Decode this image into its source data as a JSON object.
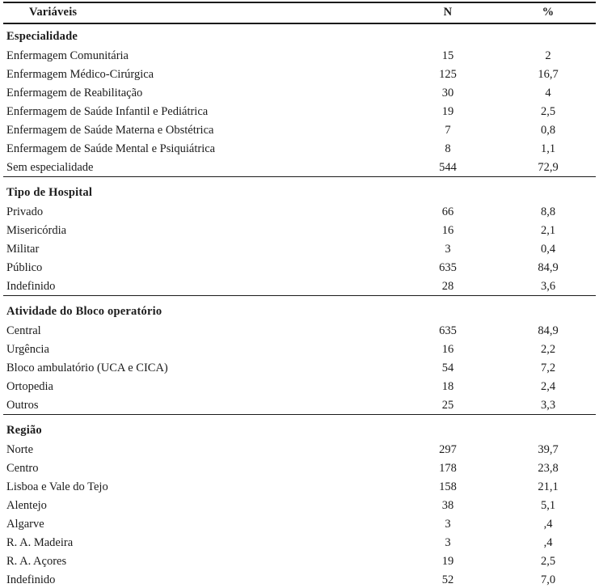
{
  "table": {
    "columns": [
      "Variáveis",
      "N",
      "%"
    ],
    "sections": [
      {
        "header": "Especialidade",
        "rows": [
          {
            "label": "Enfermagem Comunitária",
            "n": "15",
            "pct": "2"
          },
          {
            "label": "Enfermagem Médico-Cirúrgica",
            "n": "125",
            "pct": "16,7"
          },
          {
            "label": "Enfermagem de Reabilitação",
            "n": "30",
            "pct": "4"
          },
          {
            "label": "Enfermagem de Saúde Infantil e Pediátrica",
            "n": "19",
            "pct": "2,5"
          },
          {
            "label": "Enfermagem de Saúde Materna e Obstétrica",
            "n": "7",
            "pct": "0,8"
          },
          {
            "label": "Enfermagem de Saúde Mental e Psiquiátrica",
            "n": "8",
            "pct": "1,1"
          },
          {
            "label": "Sem especialidade",
            "n": "544",
            "pct": "72,9"
          }
        ]
      },
      {
        "header": "Tipo de Hospital",
        "rows": [
          {
            "label": "Privado",
            "n": "66",
            "pct": "8,8"
          },
          {
            "label": "Misericórdia",
            "n": "16",
            "pct": "2,1"
          },
          {
            "label": "Militar",
            "n": "3",
            "pct": "0,4"
          },
          {
            "label": "Público",
            "n": "635",
            "pct": "84,9"
          },
          {
            "label": "Indefinido",
            "n": "28",
            "pct": "3,6"
          }
        ]
      },
      {
        "header": "Atividade do Bloco operatório",
        "rows": [
          {
            "label": "Central",
            "n": "635",
            "pct": "84,9"
          },
          {
            "label": "Urgência",
            "n": "16",
            "pct": "2,2"
          },
          {
            "label": "Bloco ambulatório (UCA e CICA)",
            "n": "54",
            "pct": "7,2"
          },
          {
            "label": "Ortopedia",
            "n": "18",
            "pct": "2,4"
          },
          {
            "label": "Outros",
            "n": "25",
            "pct": "3,3"
          }
        ]
      },
      {
        "header": "Região",
        "rows": [
          {
            "label": "Norte",
            "n": "297",
            "pct": "39,7"
          },
          {
            "label": "Centro",
            "n": "178",
            "pct": "23,8"
          },
          {
            "label": "Lisboa e Vale do Tejo",
            "n": "158",
            "pct": "21,1"
          },
          {
            "label": "Alentejo",
            "n": "38",
            "pct": "5,1"
          },
          {
            "label": "Algarve",
            "n": "3",
            "pct": ",4"
          },
          {
            "label": "R. A. Madeira",
            "n": "3",
            "pct": ",4"
          },
          {
            "label": "R. A. Açores",
            "n": "19",
            "pct": "2,5"
          },
          {
            "label": "Indefinido",
            "n": "52",
            "pct": "7,0"
          }
        ]
      }
    ]
  },
  "chart_data": {
    "type": "table",
    "title": "Variáveis / N / %",
    "columns": [
      "Variáveis",
      "N",
      "%"
    ],
    "groups": [
      {
        "name": "Especialidade",
        "rows": [
          [
            "Enfermagem Comunitária",
            15,
            "2"
          ],
          [
            "Enfermagem Médico-Cirúrgica",
            125,
            "16,7"
          ],
          [
            "Enfermagem de Reabilitação",
            30,
            "4"
          ],
          [
            "Enfermagem de Saúde Infantil e Pediátrica",
            19,
            "2,5"
          ],
          [
            "Enfermagem de Saúde Materna e Obstétrica",
            7,
            "0,8"
          ],
          [
            "Enfermagem de Saúde Mental e Psiquiátrica",
            8,
            "1,1"
          ],
          [
            "Sem especialidade",
            544,
            "72,9"
          ]
        ]
      },
      {
        "name": "Tipo de Hospital",
        "rows": [
          [
            "Privado",
            66,
            "8,8"
          ],
          [
            "Misericórdia",
            16,
            "2,1"
          ],
          [
            "Militar",
            3,
            "0,4"
          ],
          [
            "Público",
            635,
            "84,9"
          ],
          [
            "Indefinido",
            28,
            "3,6"
          ]
        ]
      },
      {
        "name": "Atividade do Bloco operatório",
        "rows": [
          [
            "Central",
            635,
            "84,9"
          ],
          [
            "Urgência",
            16,
            "2,2"
          ],
          [
            "Bloco ambulatório (UCA e CICA)",
            54,
            "7,2"
          ],
          [
            "Ortopedia",
            18,
            "2,4"
          ],
          [
            "Outros",
            25,
            "3,3"
          ]
        ]
      },
      {
        "name": "Região",
        "rows": [
          [
            "Norte",
            297,
            "39,7"
          ],
          [
            "Centro",
            178,
            "23,8"
          ],
          [
            "Lisboa e Vale do Tejo",
            158,
            "21,1"
          ],
          [
            "Alentejo",
            38,
            "5,1"
          ],
          [
            "Algarve",
            3,
            ",4"
          ],
          [
            "R. A. Madeira",
            3,
            ",4"
          ],
          [
            "R. A. Açores",
            19,
            "2,5"
          ],
          [
            "Indefinido",
            52,
            "7,0"
          ]
        ]
      }
    ]
  }
}
